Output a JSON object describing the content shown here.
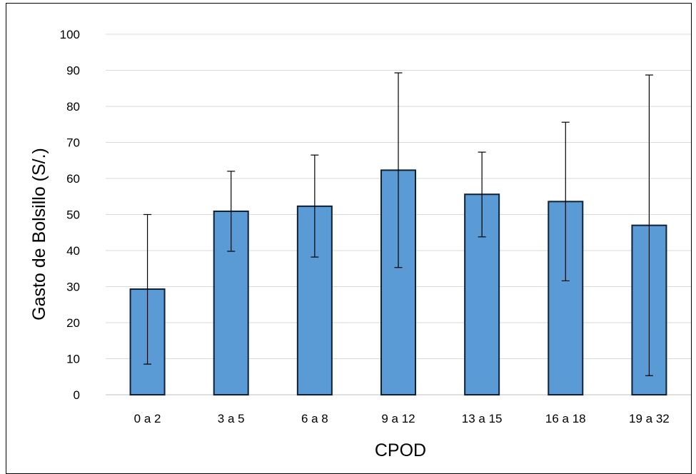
{
  "chart_data": {
    "type": "bar",
    "title": "",
    "xlabel": "CPOD",
    "ylabel": "Gasto de Bolsillo (S/.)",
    "ylim": [
      0,
      100
    ],
    "yticks": [
      0,
      10,
      20,
      30,
      40,
      50,
      60,
      70,
      80,
      90,
      100
    ],
    "grid": true,
    "legend": "none",
    "categories": [
      "0 a 2",
      "3 a 5",
      "6 a 8",
      "9 a 12",
      "13 a 15",
      "16 a 18",
      "19 a 32"
    ],
    "series": [
      {
        "values": [
          29.3,
          50.9,
          52.3,
          62.3,
          55.6,
          53.6,
          47.0
        ],
        "error_low": [
          8.5,
          39.8,
          38.2,
          35.3,
          43.8,
          31.6,
          5.3
        ],
        "error_high": [
          50.0,
          62.0,
          66.5,
          89.3,
          67.3,
          75.6,
          88.7
        ],
        "color": "#5B9BD5",
        "edge_color": "#0F2137"
      }
    ],
    "error_bar_color": "#000000",
    "grid_color": "#D9D9D9"
  }
}
